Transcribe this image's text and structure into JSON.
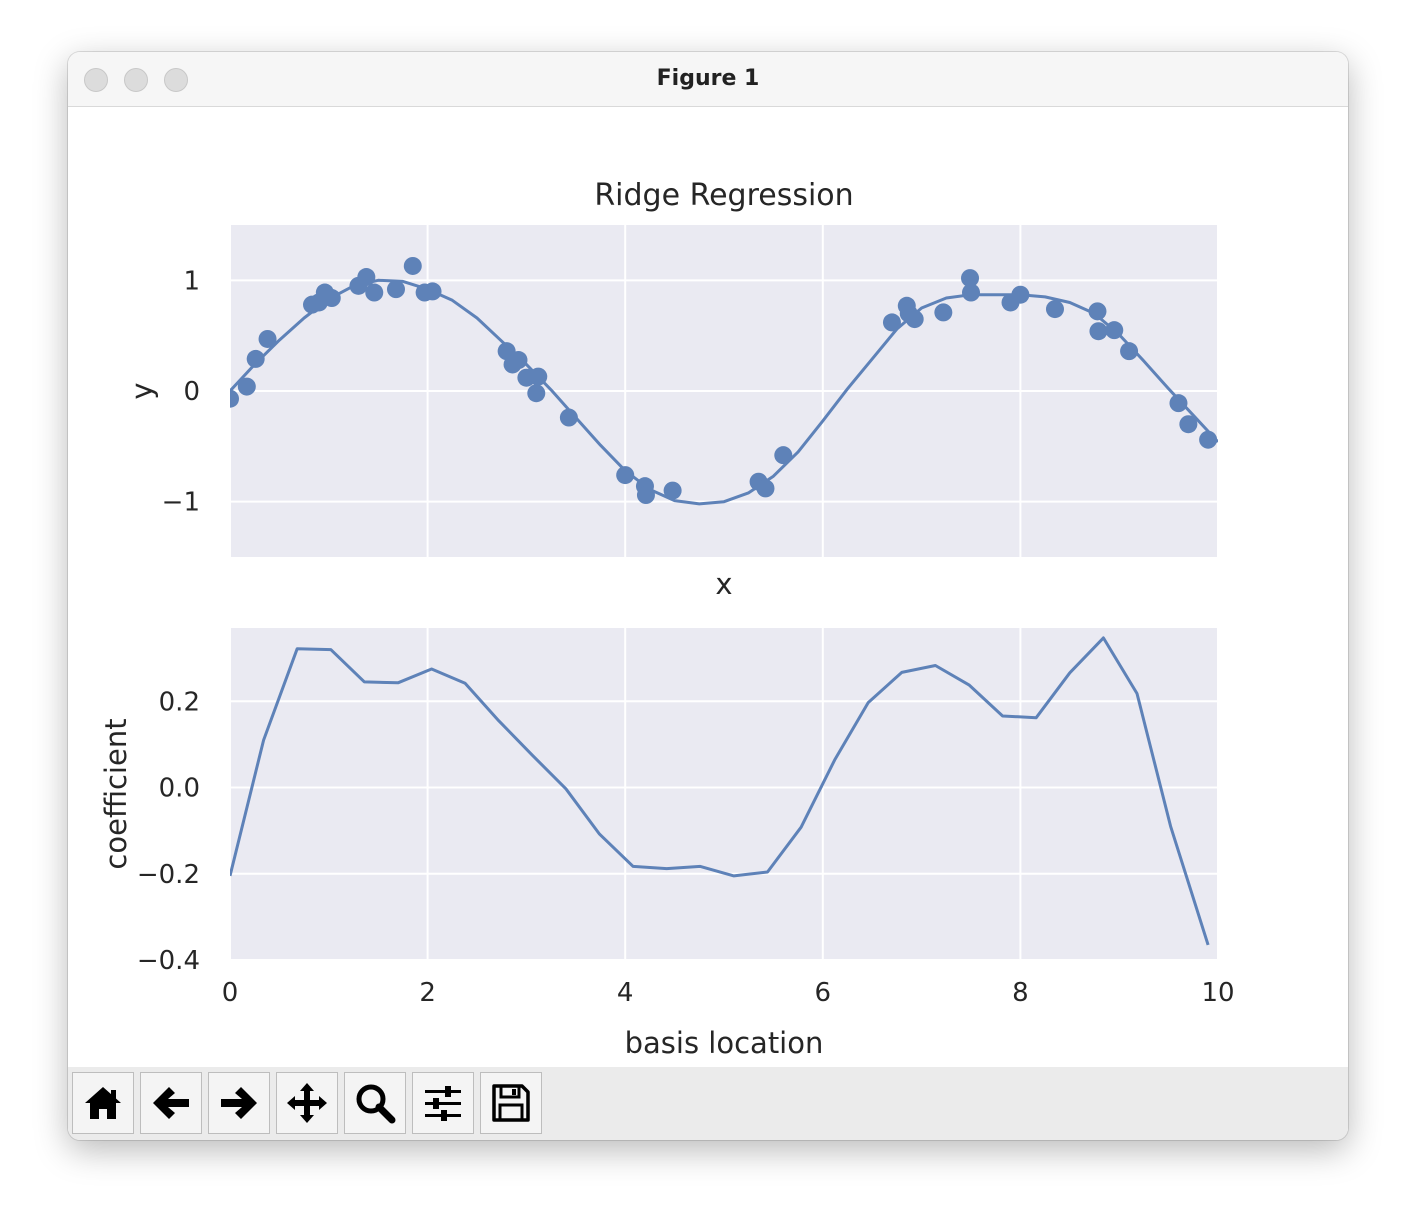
{
  "window": {
    "title": "Figure 1"
  },
  "toolbar": {
    "buttons": [
      {
        "name": "home-button",
        "icon": "home-icon"
      },
      {
        "name": "back-button",
        "icon": "arrow-left-icon"
      },
      {
        "name": "forward-button",
        "icon": "arrow-right-icon"
      },
      {
        "name": "pan-button",
        "icon": "move-icon"
      },
      {
        "name": "zoom-button",
        "icon": "magnifier-icon"
      },
      {
        "name": "configure-subplots-button",
        "icon": "sliders-icon"
      },
      {
        "name": "save-button",
        "icon": "floppy-disk-icon"
      }
    ]
  },
  "colors": {
    "series": "#5e82b8",
    "axes_bg": "#eaeaf2",
    "grid": "#ffffff"
  },
  "chart_data": [
    {
      "type": "scatter",
      "title": "Ridge Regression",
      "xlabel": "x",
      "ylabel": "y",
      "xlim": [
        0,
        10
      ],
      "ylim": [
        -1.5,
        1.5
      ],
      "xticks": [
        0,
        2,
        4,
        6,
        8,
        10
      ],
      "show_xticklabels": false,
      "yticks": [
        -1,
        0,
        1
      ],
      "yticklabels": [
        "−1",
        "0",
        "1"
      ],
      "grid": true,
      "points": [
        [
          0.0,
          -0.07
        ],
        [
          0.17,
          0.04
        ],
        [
          0.26,
          0.29
        ],
        [
          0.38,
          0.47
        ],
        [
          0.83,
          0.78
        ],
        [
          0.9,
          0.8
        ],
        [
          0.96,
          0.89
        ],
        [
          1.03,
          0.84
        ],
        [
          1.3,
          0.95
        ],
        [
          1.38,
          1.03
        ],
        [
          1.46,
          0.89
        ],
        [
          1.68,
          0.92
        ],
        [
          1.85,
          1.13
        ],
        [
          1.97,
          0.89
        ],
        [
          2.05,
          0.9
        ],
        [
          2.8,
          0.36
        ],
        [
          2.86,
          0.24
        ],
        [
          2.92,
          0.28
        ],
        [
          3.0,
          0.12
        ],
        [
          3.12,
          0.13
        ],
        [
          3.1,
          -0.02
        ],
        [
          3.43,
          -0.24
        ],
        [
          4.0,
          -0.76
        ],
        [
          4.2,
          -0.86
        ],
        [
          4.21,
          -0.94
        ],
        [
          4.48,
          -0.9
        ],
        [
          5.35,
          -0.82
        ],
        [
          5.42,
          -0.88
        ],
        [
          5.6,
          -0.58
        ],
        [
          6.7,
          0.62
        ],
        [
          6.85,
          0.77
        ],
        [
          6.87,
          0.7
        ],
        [
          6.93,
          0.65
        ],
        [
          7.22,
          0.71
        ],
        [
          7.49,
          1.02
        ],
        [
          7.5,
          0.89
        ],
        [
          7.9,
          0.8
        ],
        [
          8.0,
          0.87
        ],
        [
          8.35,
          0.74
        ],
        [
          8.78,
          0.72
        ],
        [
          8.79,
          0.54
        ],
        [
          8.95,
          0.55
        ],
        [
          9.1,
          0.36
        ],
        [
          9.6,
          -0.11
        ],
        [
          9.7,
          -0.3
        ],
        [
          9.9,
          -0.44
        ]
      ],
      "fit": [
        [
          0.0,
          0.0
        ],
        [
          0.25,
          0.24
        ],
        [
          0.5,
          0.46
        ],
        [
          0.75,
          0.66
        ],
        [
          1.0,
          0.83
        ],
        [
          1.25,
          0.95
        ],
        [
          1.5,
          1.0
        ],
        [
          1.75,
          0.99
        ],
        [
          2.0,
          0.92
        ],
        [
          2.25,
          0.82
        ],
        [
          2.5,
          0.66
        ],
        [
          2.75,
          0.45
        ],
        [
          3.0,
          0.24
        ],
        [
          3.25,
          0.01
        ],
        [
          3.5,
          -0.24
        ],
        [
          3.75,
          -0.49
        ],
        [
          4.0,
          -0.72
        ],
        [
          4.25,
          -0.89
        ],
        [
          4.5,
          -0.99
        ],
        [
          4.75,
          -1.02
        ],
        [
          5.0,
          -1.0
        ],
        [
          5.25,
          -0.92
        ],
        [
          5.5,
          -0.77
        ],
        [
          5.75,
          -0.55
        ],
        [
          6.0,
          -0.27
        ],
        [
          6.25,
          0.02
        ],
        [
          6.5,
          0.29
        ],
        [
          6.75,
          0.56
        ],
        [
          7.0,
          0.75
        ],
        [
          7.25,
          0.84
        ],
        [
          7.5,
          0.87
        ],
        [
          7.75,
          0.87
        ],
        [
          8.0,
          0.87
        ],
        [
          8.25,
          0.85
        ],
        [
          8.5,
          0.8
        ],
        [
          8.75,
          0.7
        ],
        [
          9.0,
          0.51
        ],
        [
          9.25,
          0.27
        ],
        [
          9.5,
          0.02
        ],
        [
          9.75,
          -0.22
        ],
        [
          10.0,
          -0.46
        ]
      ]
    },
    {
      "type": "line",
      "title": "",
      "xlabel": "basis location",
      "ylabel": "coefficient",
      "xlim": [
        0,
        10
      ],
      "ylim": [
        -0.4,
        0.37
      ],
      "xticks": [
        0,
        2,
        4,
        6,
        8,
        10
      ],
      "xticklabels": [
        "0",
        "2",
        "4",
        "6",
        "8",
        "10"
      ],
      "yticks": [
        -0.4,
        -0.2,
        0.0,
        0.2
      ],
      "yticklabels": [
        "−0.4",
        "−0.2",
        "0.0",
        "0.2"
      ],
      "grid": true,
      "x": [
        0.0,
        0.34,
        0.68,
        1.02,
        1.36,
        1.7,
        2.04,
        2.38,
        2.72,
        3.06,
        3.4,
        3.74,
        4.08,
        4.42,
        4.76,
        5.1,
        5.44,
        5.78,
        6.12,
        6.46,
        6.8,
        7.14,
        7.48,
        7.82,
        8.16,
        8.5,
        8.84,
        9.18,
        9.52,
        9.9
      ],
      "y": [
        -0.205,
        0.11,
        0.322,
        0.32,
        0.245,
        0.243,
        0.275,
        0.242,
        0.155,
        0.075,
        -0.003,
        -0.108,
        -0.183,
        -0.188,
        -0.183,
        -0.205,
        -0.196,
        -0.092,
        0.064,
        0.197,
        0.267,
        0.283,
        0.238,
        0.166,
        0.162,
        0.266,
        0.347,
        0.218,
        -0.09,
        -0.365
      ]
    }
  ]
}
